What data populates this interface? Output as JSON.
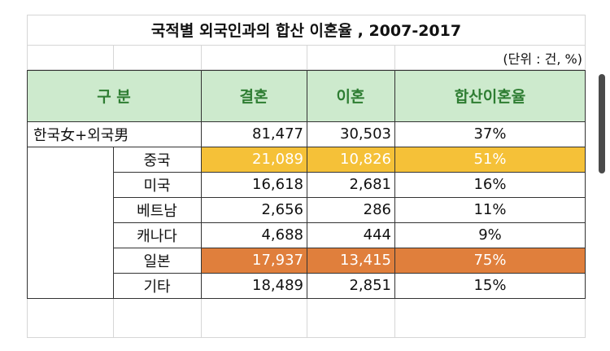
{
  "title": "국적별 외국인과의 합산 이혼율 , 2007-2017",
  "unit": "(단위 : 건, %)",
  "headers": {
    "category": "구 분",
    "marriage": "결혼",
    "divorce": "이혼",
    "rate": "합산이혼율"
  },
  "total": {
    "label": "한국女+외국男",
    "marriage": "81,477",
    "divorce": "30,503",
    "rate": "37%"
  },
  "rows": [
    {
      "label": "중국",
      "marriage": "21,089",
      "divorce": "10,826",
      "rate": "51%",
      "highlight": "#f5c138"
    },
    {
      "label": "미국",
      "marriage": "16,618",
      "divorce": "2,681",
      "rate": "16%"
    },
    {
      "label": "베트남",
      "marriage": "2,656",
      "divorce": "286",
      "rate": "11%"
    },
    {
      "label": "캐나다",
      "marriage": "4,688",
      "divorce": "444",
      "rate": "9%"
    },
    {
      "label": "일본",
      "marriage": "17,937",
      "divorce": "13,415",
      "rate": "75%",
      "highlight": "#e07f3c"
    },
    {
      "label": "기타",
      "marriage": "18,489",
      "divorce": "2,851",
      "rate": "15%"
    }
  ]
}
